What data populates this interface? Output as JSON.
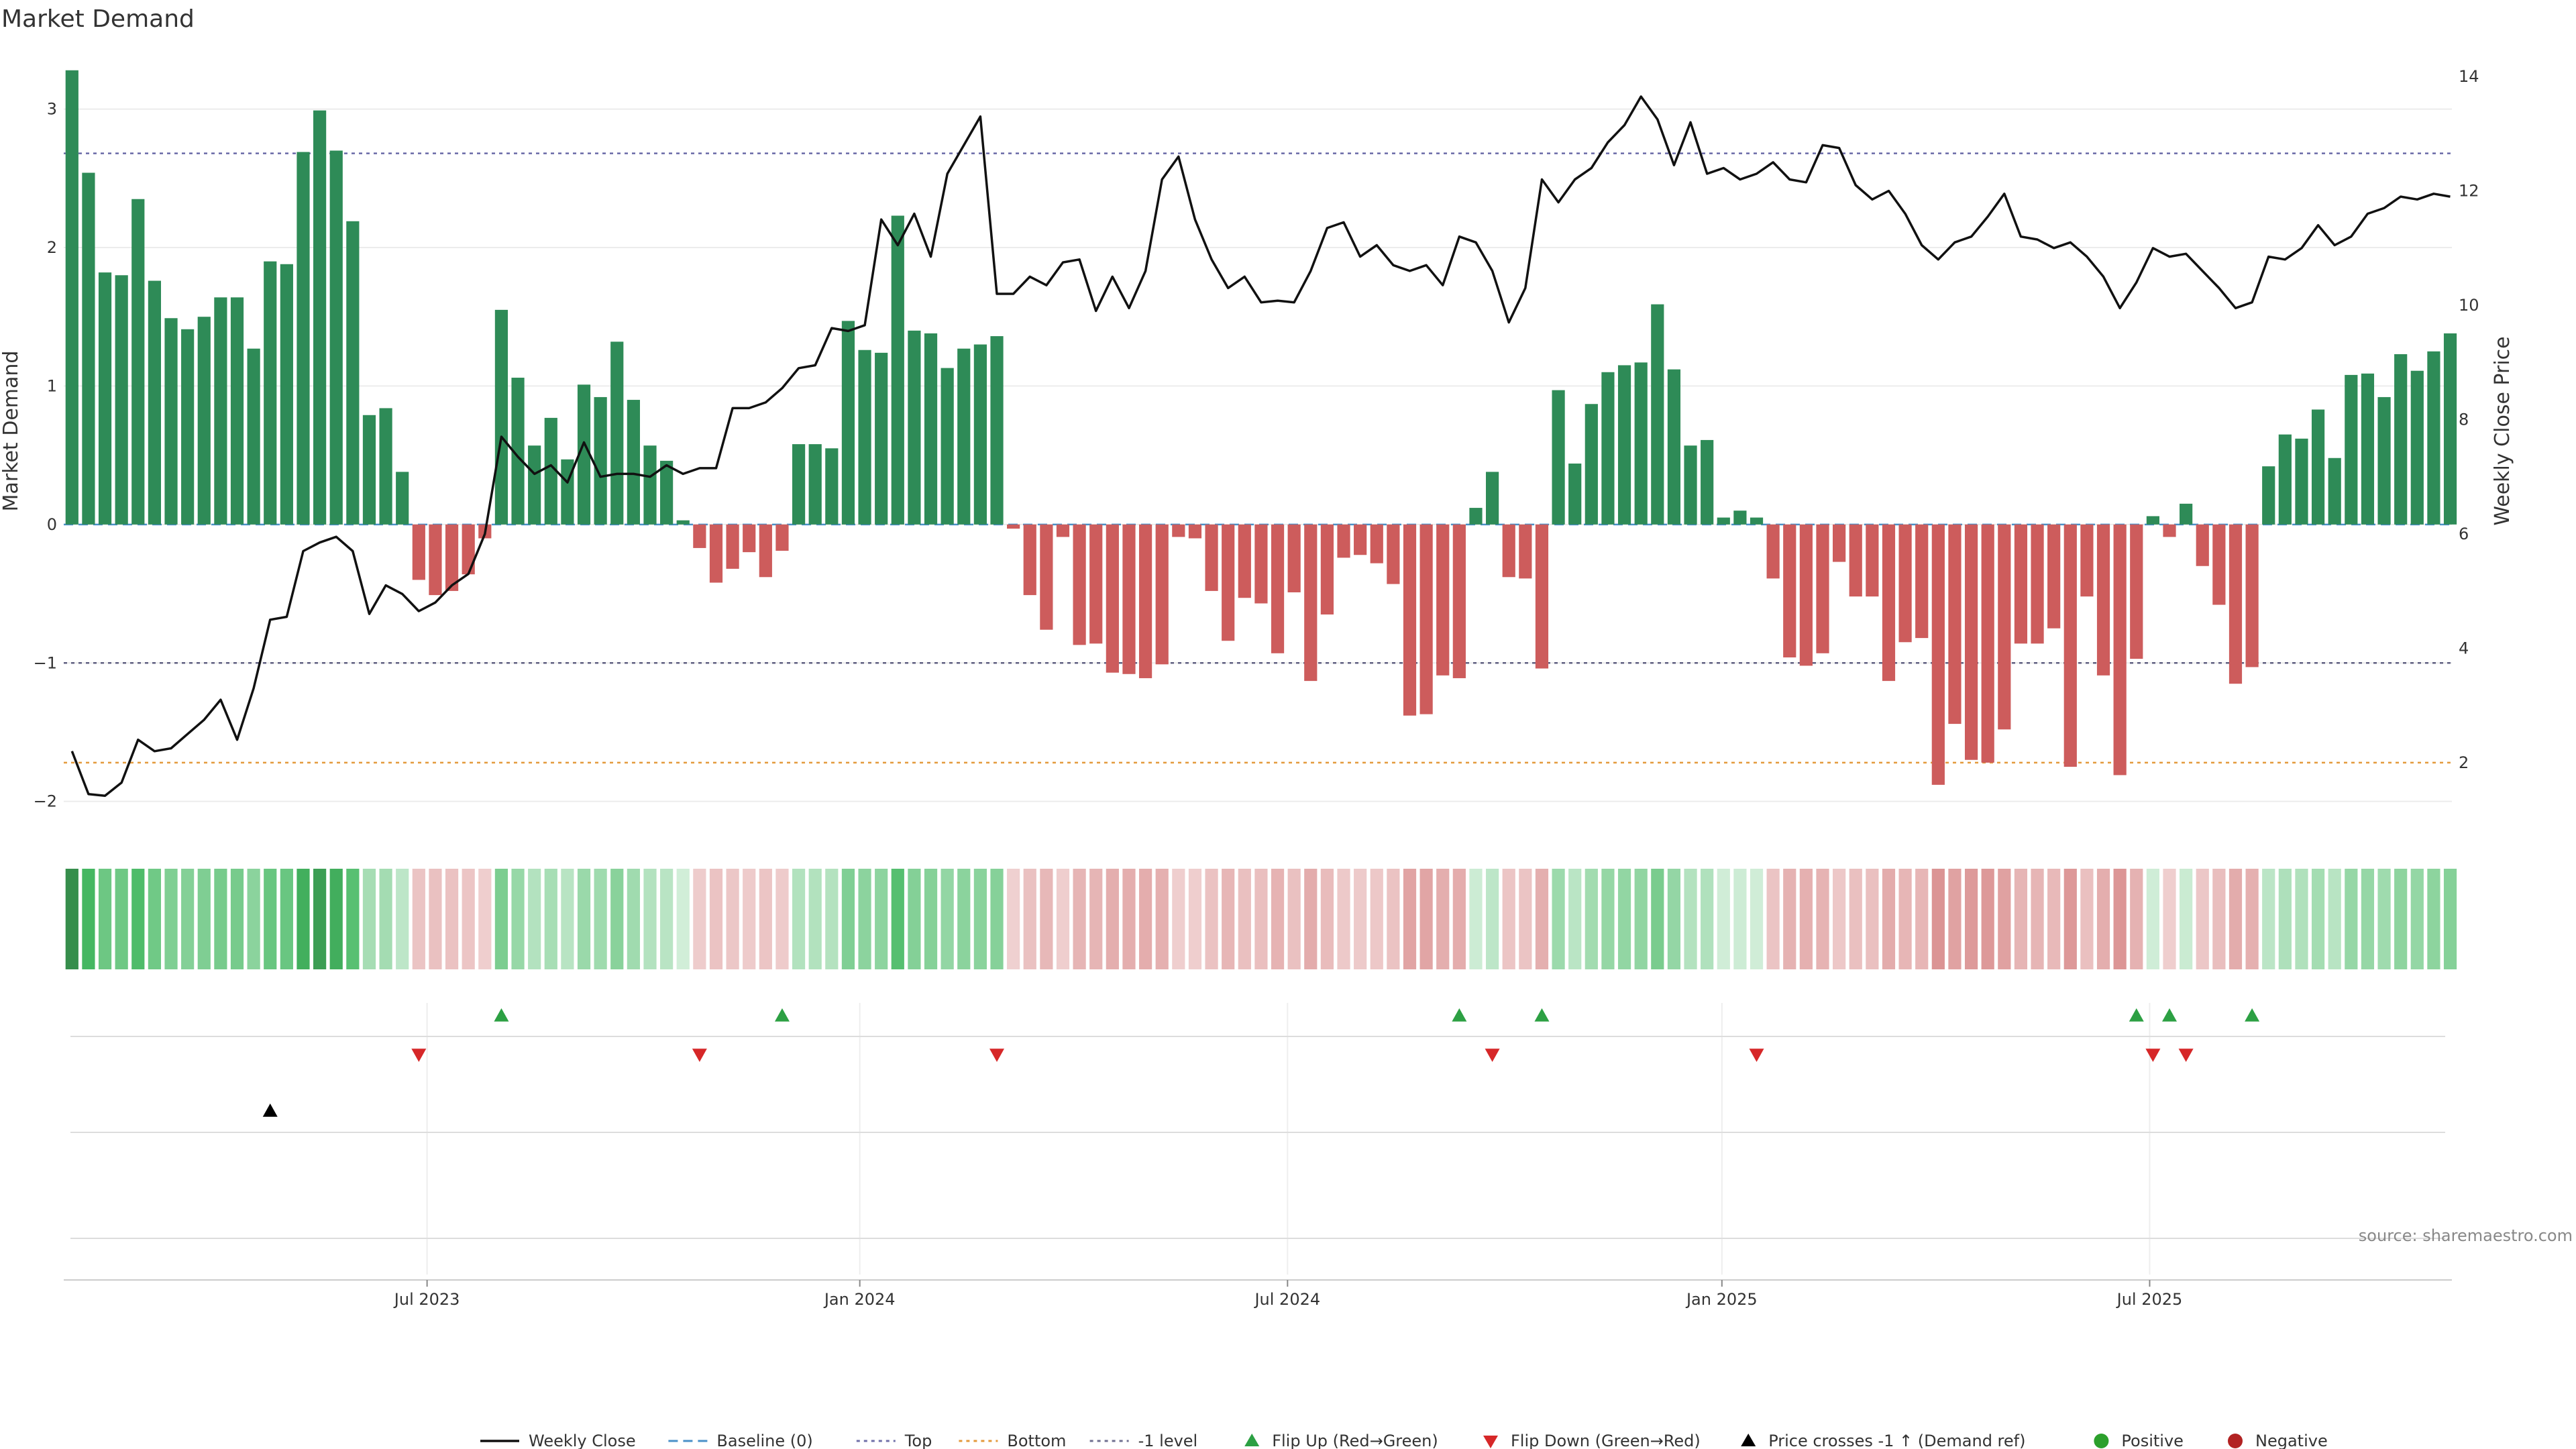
{
  "chart_data": {
    "type": "bar",
    "title": "Market Demand",
    "ylabel_left": "Market Demand",
    "ylabel_right": "Weekly Close Price",
    "ylim_left": [
      -2.05,
      3.4
    ],
    "ylim_right": [
      1.2,
      14.4
    ],
    "left_ticks": [
      {
        "v": 3,
        "label": "3"
      },
      {
        "v": 2,
        "label": "2"
      },
      {
        "v": 1,
        "label": "1"
      },
      {
        "v": 0,
        "label": "0"
      },
      {
        "v": -1,
        "label": "−1"
      },
      {
        "v": -2,
        "label": "−2"
      }
    ],
    "right_ticks": [
      {
        "v": 14,
        "label": "14"
      },
      {
        "v": 12,
        "label": "12"
      },
      {
        "v": 10,
        "label": "10"
      },
      {
        "v": 8,
        "label": "8"
      },
      {
        "v": 6,
        "label": "6"
      },
      {
        "v": 4,
        "label": "4"
      },
      {
        "v": 2,
        "label": "2"
      }
    ],
    "x_ticks": [
      {
        "week": 21.5,
        "label": "Jul 2023"
      },
      {
        "week": 47.7,
        "label": "Jan 2024"
      },
      {
        "week": 73.6,
        "label": "Jul 2024"
      },
      {
        "week": 99.9,
        "label": "Jan 2025"
      },
      {
        "week": 125.8,
        "label": "Jul 2025"
      }
    ],
    "levels": {
      "top": 2.68,
      "bottom": -1.72,
      "minus_one": -1.0
    },
    "demand": [
      3.28,
      2.54,
      1.82,
      1.8,
      2.35,
      1.76,
      1.49,
      1.41,
      1.5,
      1.64,
      1.64,
      1.27,
      1.9,
      1.88,
      2.69,
      2.99,
      2.7,
      2.19,
      0.79,
      0.84,
      0.38,
      -0.4,
      -0.51,
      -0.48,
      -0.36,
      -0.1,
      1.55,
      1.06,
      0.57,
      0.77,
      0.47,
      1.01,
      0.92,
      1.32,
      0.9,
      0.57,
      0.46,
      0.03,
      -0.17,
      -0.42,
      -0.32,
      -0.2,
      -0.38,
      -0.19,
      0.58,
      0.58,
      0.55,
      1.47,
      1.26,
      1.24,
      2.23,
      1.4,
      1.38,
      1.13,
      1.27,
      1.3,
      1.36,
      -0.03,
      -0.51,
      -0.76,
      -0.09,
      -0.87,
      -0.86,
      -1.07,
      -1.08,
      -1.11,
      -1.01,
      -0.09,
      -0.1,
      -0.48,
      -0.84,
      -0.53,
      -0.57,
      -0.93,
      -0.49,
      -1.13,
      -0.65,
      -0.24,
      -0.22,
      -0.28,
      -0.43,
      -1.38,
      -1.37,
      -1.09,
      -1.11,
      0.12,
      0.38,
      -0.38,
      -0.39,
      -1.04,
      0.97,
      0.44,
      0.87,
      1.1,
      1.15,
      1.17,
      1.59,
      1.12,
      0.57,
      0.61,
      0.05,
      0.1,
      0.05,
      -0.39,
      -0.96,
      -1.02,
      -0.93,
      -0.27,
      -0.52,
      -0.52,
      -1.13,
      -0.85,
      -0.82,
      -1.88,
      -1.44,
      -1.7,
      -1.72,
      -1.48,
      -0.86,
      -0.86,
      -0.75,
      -1.75,
      -0.52,
      -1.09,
      -1.81,
      -0.97,
      0.06,
      -0.09,
      0.15,
      -0.3,
      -0.58,
      -1.15,
      -1.03,
      0.42,
      0.65,
      0.62,
      0.83,
      0.48,
      1.08,
      1.09,
      0.92,
      1.23,
      1.11,
      1.25,
      1.38
    ],
    "close": [
      2.2,
      1.45,
      1.42,
      1.65,
      2.4,
      2.2,
      2.25,
      2.5,
      2.75,
      3.1,
      2.4,
      3.3,
      4.5,
      4.55,
      5.7,
      5.85,
      5.95,
      5.7,
      4.6,
      5.1,
      4.95,
      4.65,
      4.8,
      5.1,
      5.3,
      6.0,
      7.7,
      7.35,
      7.05,
      7.2,
      6.9,
      7.6,
      7.0,
      7.05,
      7.05,
      7.0,
      7.2,
      7.05,
      7.15,
      7.15,
      8.2,
      8.2,
      8.3,
      8.55,
      8.9,
      8.95,
      9.6,
      9.55,
      9.65,
      11.5,
      11.05,
      11.6,
      10.85,
      12.3,
      12.8,
      13.3,
      10.2,
      10.2,
      10.5,
      10.35,
      10.75,
      10.8,
      9.9,
      10.5,
      9.95,
      10.6,
      12.2,
      12.6,
      11.5,
      10.8,
      10.3,
      10.5,
      10.05,
      10.08,
      10.05,
      10.6,
      11.35,
      11.45,
      10.85,
      11.05,
      10.7,
      10.6,
      10.7,
      10.35,
      11.2,
      11.1,
      10.6,
      9.7,
      10.3,
      12.2,
      11.8,
      12.2,
      12.4,
      12.85,
      13.15,
      13.65,
      13.25,
      12.45,
      13.2,
      12.3,
      12.4,
      12.2,
      12.3,
      12.5,
      12.2,
      12.15,
      12.8,
      12.75,
      12.1,
      11.85,
      12.0,
      11.6,
      11.05,
      10.8,
      11.1,
      11.2,
      11.55,
      11.95,
      11.2,
      11.15,
      11.0,
      11.1,
      10.85,
      10.5,
      9.95,
      10.4,
      11.0,
      10.85,
      10.9,
      10.6,
      10.3,
      9.95,
      10.05,
      10.85,
      10.8,
      11.0,
      11.4,
      11.05,
      11.2,
      11.6,
      11.7,
      11.9,
      11.85,
      11.95,
      11.9
    ],
    "flip_up_weeks": [
      26,
      43,
      84,
      89,
      125,
      127,
      132
    ],
    "flip_down_weeks": [
      21,
      38,
      56,
      86,
      102,
      126,
      128
    ],
    "price_cross_weeks": [
      12
    ],
    "source": "source: sharemaestro.com",
    "legend": [
      {
        "label": "Weekly Close",
        "kind": "line",
        "color": "#111111"
      },
      {
        "label": "Baseline (0)",
        "kind": "dash",
        "color": "#4a90c8"
      },
      {
        "label": "Top",
        "kind": "dot",
        "color": "#7070a8"
      },
      {
        "label": "Bottom",
        "kind": "dot",
        "color": "#e39a3c"
      },
      {
        "label": "-1 level",
        "kind": "dot",
        "color": "#707090"
      },
      {
        "label": "Flip Up (Red→Green)",
        "kind": "tri-up",
        "color": "#2ca043"
      },
      {
        "label": "Flip Down (Green→Red)",
        "kind": "tri-down",
        "color": "#d62728"
      },
      {
        "label": "Price crosses -1 ↑ (Demand ref)",
        "kind": "tri-up",
        "color": "#000000"
      },
      {
        "label": "Positive",
        "kind": "dot-fill",
        "color": "#2ca02c"
      },
      {
        "label": "Negative",
        "kind": "dot-fill",
        "color": "#b22222"
      }
    ],
    "colors": {
      "positive_bar": "#2e8b57",
      "negative_bar": "#cd5c5c",
      "line": "#111111"
    }
  }
}
